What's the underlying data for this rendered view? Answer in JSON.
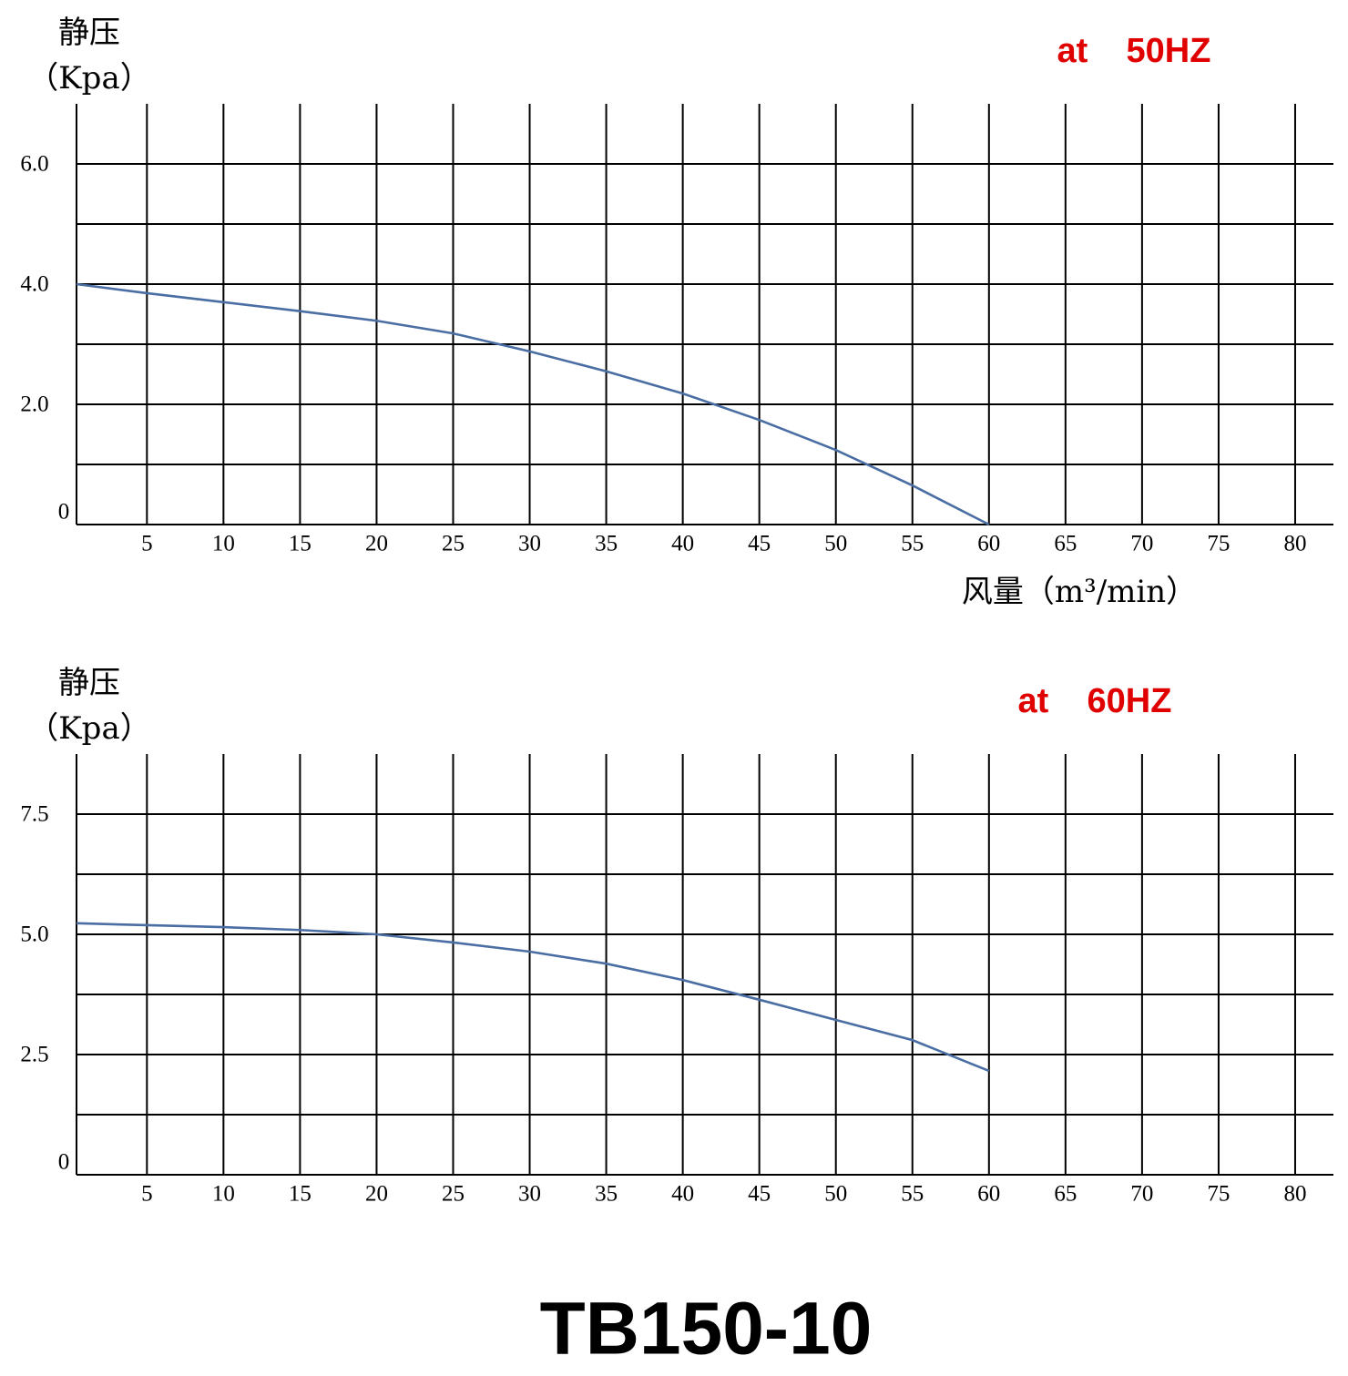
{
  "title": "TB150-10",
  "chart_data": [
    {
      "type": "line",
      "ylabel": [
        "静压",
        "（Kpa）"
      ],
      "annotation": "at    50HZ",
      "xlabel": "风量（m³/min）",
      "xlim": [
        0.4,
        82.5
      ],
      "xticks": [
        5,
        10,
        15,
        20,
        25,
        30,
        35,
        40,
        45,
        50,
        55,
        60,
        65,
        70,
        75,
        80
      ],
      "ylim": [
        0,
        7
      ],
      "yticks": [
        0,
        {
          "value": 2,
          "label": "2.0"
        },
        {
          "value": 4,
          "label": "4.0"
        },
        {
          "value": 6,
          "label": "6.0"
        }
      ],
      "minor_yticks": [
        1,
        3,
        5
      ],
      "grid": true,
      "color": "#4a6ea3",
      "x": [
        0.4,
        5,
        10,
        15,
        20,
        25,
        30,
        35,
        40,
        45,
        50,
        55,
        60
      ],
      "values": [
        4.0,
        3.85,
        3.7,
        3.55,
        3.39,
        3.18,
        2.88,
        2.55,
        2.18,
        1.74,
        1.24,
        0.65,
        0
      ]
    },
    {
      "type": "line",
      "ylabel": [
        "静压",
        "（Kpa）"
      ],
      "annotation": "at    60HZ",
      "xlim": [
        0.4,
        82.5
      ],
      "xticks": [
        5,
        10,
        15,
        20,
        25,
        30,
        35,
        40,
        45,
        50,
        55,
        60,
        65,
        70,
        75,
        80
      ],
      "ylim": [
        0,
        8.75
      ],
      "yticks": [
        0,
        {
          "value": 2.5,
          "label": "2.5"
        },
        {
          "value": 5,
          "label": "5.0"
        },
        {
          "value": 7.5,
          "label": "7.5"
        }
      ],
      "minor_yticks": [
        1.25,
        3.75,
        6.25
      ],
      "grid": true,
      "color": "#4a6ea3",
      "x": [
        0.4,
        5,
        10,
        15,
        20,
        25,
        30,
        35,
        40,
        45,
        50,
        55,
        60
      ],
      "values": [
        5.23,
        5.19,
        5.15,
        5.09,
        5.0,
        4.83,
        4.64,
        4.39,
        4.05,
        3.64,
        3.22,
        2.8,
        2.16
      ]
    }
  ]
}
